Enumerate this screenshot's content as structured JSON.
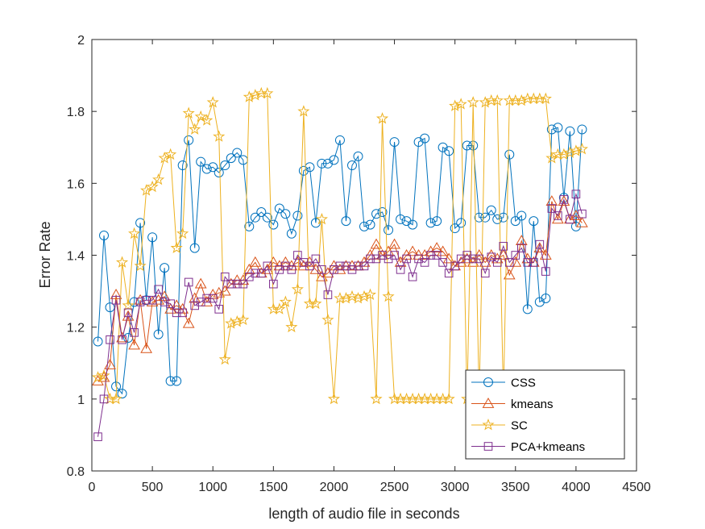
{
  "chart_data": {
    "type": "line",
    "title": "",
    "xlabel": "length of audio file in seconds",
    "ylabel": "Error Rate",
    "xlim": [
      0,
      4500
    ],
    "ylim": [
      0.8,
      2.0
    ],
    "xticks": [
      0,
      500,
      1000,
      1500,
      2000,
      2500,
      3000,
      3500,
      4000,
      4500
    ],
    "yticks": [
      0.8,
      1.0,
      1.2,
      1.4,
      1.6,
      1.8,
      2.0
    ],
    "xtick_labels": [
      "0",
      "500",
      "1000",
      "1500",
      "2000",
      "2500",
      "3000",
      "3500",
      "4000",
      "4500"
    ],
    "ytick_labels": [
      "0.8",
      "1",
      "1.2",
      "1.4",
      "1.6",
      "1.8",
      "2"
    ],
    "grid": false,
    "legend_position": "bottom-right",
    "series": [
      {
        "name": "CSS",
        "color": "#0072BD",
        "marker": "circle",
        "x": [
          50,
          100,
          150,
          200,
          250,
          300,
          350,
          400,
          450,
          500,
          550,
          600,
          650,
          700,
          750,
          800,
          850,
          900,
          950,
          1000,
          1050,
          1100,
          1150,
          1200,
          1250,
          1300,
          1350,
          1400,
          1450,
          1500,
          1550,
          1600,
          1650,
          1700,
          1750,
          1800,
          1850,
          1900,
          1950,
          2000,
          2050,
          2100,
          2150,
          2200,
          2250,
          2300,
          2350,
          2400,
          2450,
          2500,
          2550,
          2600,
          2650,
          2700,
          2750,
          2800,
          2850,
          2900,
          2950,
          3000,
          3050,
          3100,
          3150,
          3200,
          3250,
          3300,
          3350,
          3400,
          3450,
          3500,
          3550,
          3600,
          3650,
          3700,
          3750,
          3800,
          3850,
          3900,
          3950,
          4000,
          4050
        ],
        "y": [
          1.16,
          1.455,
          1.255,
          1.035,
          1.015,
          1.17,
          1.27,
          1.49,
          1.275,
          1.45,
          1.18,
          1.365,
          1.05,
          1.05,
          1.65,
          1.72,
          1.42,
          1.66,
          1.64,
          1.645,
          1.63,
          1.65,
          1.67,
          1.685,
          1.665,
          1.48,
          1.505,
          1.52,
          1.505,
          1.485,
          1.53,
          1.515,
          1.46,
          1.51,
          1.635,
          1.645,
          1.49,
          1.655,
          1.655,
          1.665,
          1.72,
          1.495,
          1.65,
          1.675,
          1.48,
          1.485,
          1.515,
          1.52,
          1.47,
          1.715,
          1.5,
          1.495,
          1.485,
          1.715,
          1.725,
          1.49,
          1.495,
          1.7,
          1.69,
          1.475,
          1.49,
          1.705,
          1.705,
          1.505,
          1.505,
          1.525,
          1.5,
          1.505,
          1.68,
          1.495,
          1.51,
          1.25,
          1.495,
          1.27,
          1.28,
          1.75,
          1.755,
          1.56,
          1.745,
          1.48,
          1.75
        ]
      },
      {
        "name": "kmeans",
        "color": "#D95319",
        "marker": "triangle",
        "x": [
          50,
          100,
          150,
          200,
          250,
          300,
          350,
          400,
          450,
          500,
          550,
          600,
          650,
          700,
          750,
          800,
          850,
          900,
          950,
          1000,
          1050,
          1100,
          1150,
          1200,
          1250,
          1300,
          1350,
          1400,
          1450,
          1500,
          1550,
          1600,
          1650,
          1700,
          1750,
          1800,
          1850,
          1900,
          1950,
          2000,
          2050,
          2100,
          2150,
          2200,
          2250,
          2300,
          2350,
          2400,
          2450,
          2500,
          2550,
          2600,
          2650,
          2700,
          2750,
          2800,
          2850,
          2900,
          2950,
          3000,
          3050,
          3100,
          3150,
          3200,
          3250,
          3300,
          3350,
          3400,
          3450,
          3500,
          3550,
          3600,
          3650,
          3700,
          3750,
          3800,
          3850,
          3900,
          3950,
          4000,
          4050
        ],
        "y": [
          1.05,
          1.06,
          1.095,
          1.29,
          1.17,
          1.23,
          1.15,
          1.275,
          1.14,
          1.27,
          1.275,
          1.285,
          1.25,
          1.26,
          1.25,
          1.21,
          1.28,
          1.32,
          1.27,
          1.29,
          1.295,
          1.3,
          1.32,
          1.33,
          1.33,
          1.36,
          1.38,
          1.35,
          1.36,
          1.38,
          1.37,
          1.38,
          1.37,
          1.38,
          1.37,
          1.38,
          1.36,
          1.34,
          1.35,
          1.37,
          1.36,
          1.37,
          1.37,
          1.37,
          1.38,
          1.4,
          1.43,
          1.4,
          1.41,
          1.43,
          1.38,
          1.4,
          1.41,
          1.4,
          1.4,
          1.41,
          1.42,
          1.41,
          1.39,
          1.37,
          1.38,
          1.39,
          1.38,
          1.4,
          1.38,
          1.4,
          1.39,
          1.4,
          1.345,
          1.38,
          1.44,
          1.39,
          1.38,
          1.42,
          1.4,
          1.55,
          1.5,
          1.55,
          1.5,
          1.51,
          1.49
        ]
      },
      {
        "name": "SC",
        "color": "#EDB120",
        "marker": "star",
        "x": [
          50,
          100,
          150,
          200,
          250,
          300,
          350,
          400,
          450,
          500,
          550,
          600,
          650,
          700,
          750,
          800,
          850,
          900,
          950,
          1000,
          1050,
          1100,
          1150,
          1200,
          1250,
          1300,
          1350,
          1400,
          1450,
          1500,
          1550,
          1600,
          1650,
          1700,
          1750,
          1800,
          1850,
          1900,
          1950,
          2000,
          2050,
          2100,
          2150,
          2200,
          2250,
          2300,
          2350,
          2400,
          2450,
          2500,
          2550,
          2600,
          2650,
          2700,
          2750,
          2800,
          2850,
          2900,
          2950,
          3000,
          3050,
          3100,
          3150,
          3200,
          3250,
          3300,
          3350,
          3400,
          3450,
          3500,
          3550,
          3600,
          3650,
          3700,
          3750,
          3800,
          3850,
          3900,
          3950,
          4000,
          4050
        ],
        "y": [
          1.06,
          1.065,
          1.0,
          1.0,
          1.38,
          1.26,
          1.46,
          1.37,
          1.58,
          1.59,
          1.61,
          1.67,
          1.68,
          1.42,
          1.46,
          1.795,
          1.75,
          1.785,
          1.775,
          1.825,
          1.73,
          1.11,
          1.21,
          1.215,
          1.22,
          1.84,
          1.845,
          1.85,
          1.85,
          1.25,
          1.25,
          1.27,
          1.2,
          1.305,
          1.8,
          1.265,
          1.265,
          1.5,
          1.22,
          1.0,
          1.28,
          1.28,
          1.285,
          1.28,
          1.285,
          1.29,
          1.0,
          1.78,
          1.285,
          1.0,
          1.0,
          1.0,
          1.0,
          1.0,
          1.0,
          1.0,
          1.0,
          1.0,
          1.0,
          1.815,
          1.82,
          1.0,
          1.825,
          1.0,
          1.825,
          1.83,
          1.83,
          1.0,
          1.83,
          1.83,
          1.83,
          1.835,
          1.835,
          1.835,
          1.835,
          1.67,
          1.68,
          1.68,
          1.685,
          1.69,
          1.695
        ]
      },
      {
        "name": "PCA+kmeans",
        "color": "#7E2F8E",
        "marker": "square",
        "x": [
          50,
          100,
          150,
          200,
          250,
          300,
          350,
          400,
          450,
          500,
          550,
          600,
          650,
          700,
          750,
          800,
          850,
          900,
          950,
          1000,
          1050,
          1100,
          1150,
          1200,
          1250,
          1300,
          1350,
          1400,
          1450,
          1500,
          1550,
          1600,
          1650,
          1700,
          1750,
          1800,
          1850,
          1900,
          1950,
          2000,
          2050,
          2100,
          2150,
          2200,
          2250,
          2300,
          2350,
          2400,
          2450,
          2500,
          2550,
          2600,
          2650,
          2700,
          2750,
          2800,
          2850,
          2900,
          2950,
          3000,
          3050,
          3100,
          3150,
          3200,
          3250,
          3300,
          3350,
          3400,
          3450,
          3500,
          3550,
          3600,
          3650,
          3700,
          3750,
          3800,
          3850,
          3900,
          3950,
          4000,
          4050
        ],
        "y": [
          0.895,
          1.0,
          1.165,
          1.275,
          1.165,
          1.24,
          1.185,
          1.27,
          1.275,
          1.275,
          1.305,
          1.27,
          1.265,
          1.24,
          1.24,
          1.325,
          1.26,
          1.27,
          1.28,
          1.28,
          1.25,
          1.34,
          1.32,
          1.32,
          1.32,
          1.34,
          1.35,
          1.35,
          1.37,
          1.32,
          1.36,
          1.37,
          1.36,
          1.4,
          1.38,
          1.37,
          1.39,
          1.36,
          1.29,
          1.36,
          1.37,
          1.37,
          1.36,
          1.37,
          1.37,
          1.39,
          1.39,
          1.4,
          1.39,
          1.4,
          1.36,
          1.39,
          1.34,
          1.39,
          1.38,
          1.4,
          1.4,
          1.38,
          1.35,
          1.37,
          1.39,
          1.4,
          1.39,
          1.39,
          1.35,
          1.395,
          1.38,
          1.425,
          1.38,
          1.4,
          1.42,
          1.38,
          1.38,
          1.43,
          1.355,
          1.53,
          1.51,
          1.555,
          1.5,
          1.57,
          1.515
        ]
      }
    ]
  }
}
